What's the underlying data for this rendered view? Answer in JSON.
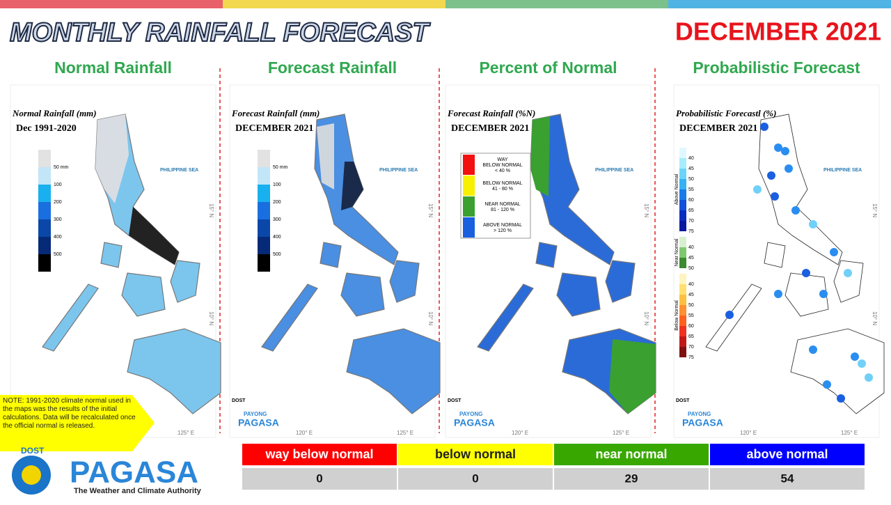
{
  "header": {
    "title": "MONTHLY RAINFALL FORECAST",
    "month": "DECEMBER 2021"
  },
  "panels": [
    {
      "heading": "Normal Rainfall",
      "map_title": "Normal Rainfall (mm)",
      "map_subtitle": "Dec 1991-2020",
      "legend": [
        "50 mm",
        "100",
        "200",
        "300",
        "400",
        "500"
      ]
    },
    {
      "heading": "Forecast Rainfall",
      "map_title": "Forecast Rainfall (mm)",
      "map_subtitle": "DECEMBER 2021",
      "legend": [
        "50 mm",
        "100",
        "200",
        "300",
        "400",
        "500"
      ]
    },
    {
      "heading": "Percent of Normal",
      "map_title": "Forecast Rainfall (%N)",
      "map_subtitle": "DECEMBER 2021",
      "legend": [
        [
          "WAY",
          "BELOW NORMAL",
          "< 40 %"
        ],
        [
          "BELOW NORMAL",
          "41 - 80 %"
        ],
        [
          "NEAR NORMAL",
          "81 - 120 %"
        ],
        [
          "ABOVE NORMAL",
          "> 120 %"
        ]
      ]
    },
    {
      "heading": "Probabilistic Forecast",
      "map_title": "Probabilistic Forecastl (%)",
      "map_subtitle": "DECEMBER 2021",
      "legend_groups": [
        {
          "name": "Above Normal",
          "labels": [
            "40",
            "45",
            "50",
            "55",
            "60",
            "65",
            "70",
            "75"
          ]
        },
        {
          "name": "Near Normal",
          "labels": [
            "40",
            "45",
            "50"
          ]
        },
        {
          "name": "Below Normal",
          "labels": [
            "40",
            "45",
            "50",
            "55",
            "60",
            "65",
            "70",
            "75"
          ]
        }
      ]
    }
  ],
  "map_labels": {
    "sea": "PHILIPPINE SEA",
    "lon_120": "120° E",
    "lon_125": "125° E",
    "lat_15": "15° N",
    "lat_10": "10° N",
    "brand_top": "PAYONG",
    "brand": "PAGASA",
    "dost": "DOST"
  },
  "note": "NOTE: 1991-2020 climate normal used in the maps was the results of the initial calculations. Data will be recalculated once the official normal is released.",
  "table": {
    "headers": [
      "way below normal",
      "below normal",
      "near normal",
      "above normal"
    ],
    "values": [
      "0",
      "0",
      "29",
      "54"
    ]
  },
  "logo": {
    "name": "PAGASA",
    "tagline": "The Weather and Climate Authority",
    "dost": "DOST"
  }
}
